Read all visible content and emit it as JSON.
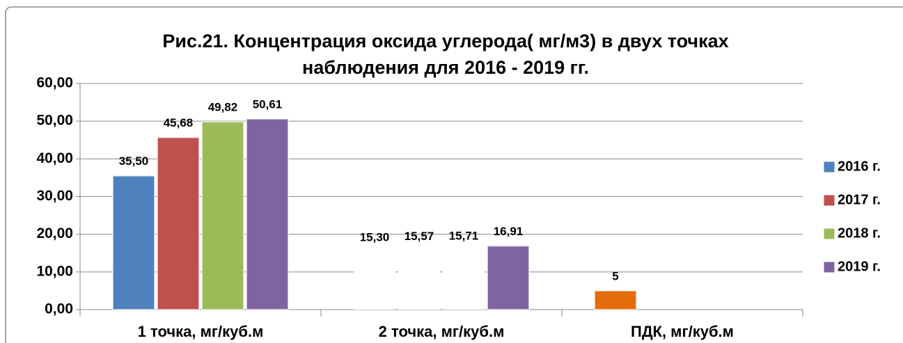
{
  "chart_data": {
    "type": "bar",
    "title": "Рис.21. Концентрация оксида углерода( мг/м3) в двух точках наблюдения для 2016 - 2019 гг.",
    "categories": [
      "1 точка, мг/куб.м",
      "2 точка, мг/куб.м",
      "ПДК, мг/куб.м"
    ],
    "series": [
      {
        "name": "2016 г.",
        "color": "#4f81bd",
        "point_colors": [
          "#4f81bd",
          "#ffffff",
          "#e46c0a"
        ],
        "values": [
          35.5,
          15.3,
          5
        ],
        "value_labels": [
          "35,50",
          "15,30",
          "5"
        ]
      },
      {
        "name": "2017 г.",
        "color": "#c0504d",
        "point_colors": [
          "#c0504d",
          "#ffffff",
          "#c0504d"
        ],
        "values": [
          45.68,
          15.57,
          null
        ],
        "value_labels": [
          "45,68",
          "15,57",
          null
        ]
      },
      {
        "name": "2018 г.",
        "color": "#9bbb59",
        "point_colors": [
          "#9bbb59",
          "#ffffff",
          "#9bbb59"
        ],
        "values": [
          49.82,
          15.71,
          null
        ],
        "value_labels": [
          "49,82",
          "15,71",
          null
        ]
      },
      {
        "name": "2019 г.",
        "color": "#8064a2",
        "point_colors": [
          "#8064a2",
          "#8064a2",
          "#8064a2"
        ],
        "values": [
          50.61,
          16.91,
          null
        ],
        "value_labels": [
          "50,61",
          "16,91",
          null
        ]
      }
    ],
    "ylim": [
      0,
      60
    ],
    "yticks": [
      {
        "value": 0,
        "label": "0,00"
      },
      {
        "value": 10,
        "label": "10,00"
      },
      {
        "value": 20,
        "label": "20,00"
      },
      {
        "value": 30,
        "label": "30,00"
      },
      {
        "value": 40,
        "label": "40,00"
      },
      {
        "value": 50,
        "label": "50,00"
      },
      {
        "value": 60,
        "label": "60,00"
      }
    ],
    "grid": true,
    "legend": "right"
  }
}
